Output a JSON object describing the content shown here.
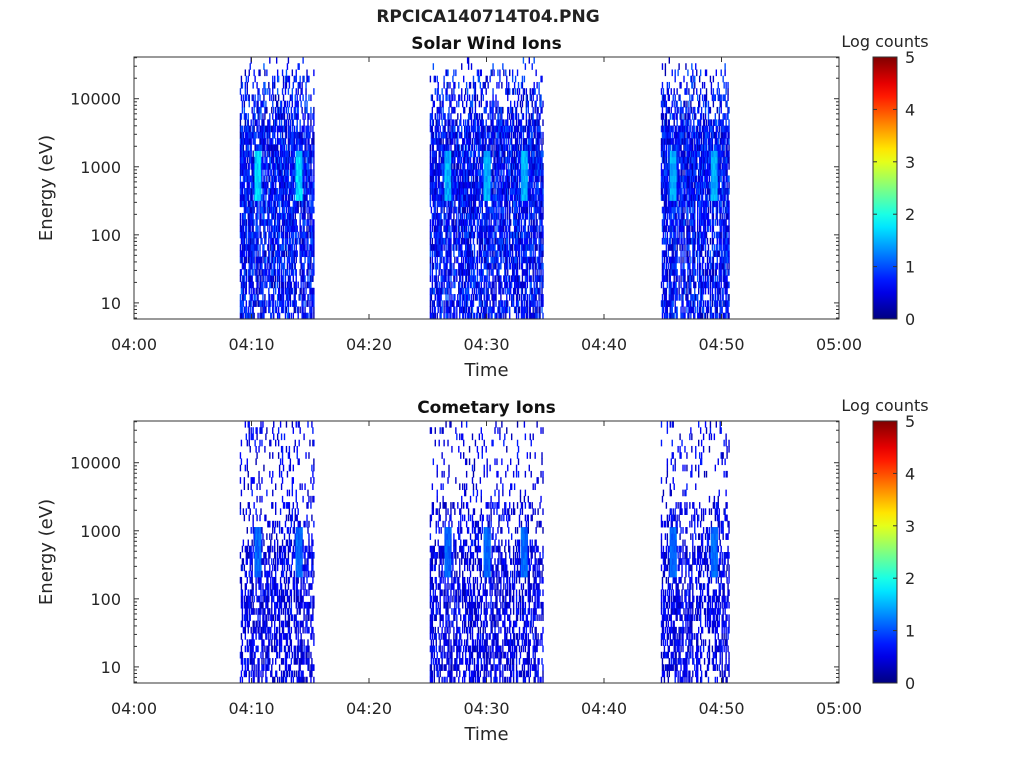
{
  "figure": {
    "title": "RPCICA140714T04.PNG"
  },
  "chart_data": [
    {
      "type": "heatmap",
      "title": "Solar Wind Ions",
      "xlabel": "Time",
      "ylabel": "Energy (eV)",
      "x_ticks": [
        "04:00",
        "04:10",
        "04:20",
        "04:30",
        "04:40",
        "04:50",
        "05:00"
      ],
      "xlim": [
        "04:00",
        "05:00"
      ],
      "y_scale": "log",
      "y_ticks": [
        10,
        100,
        1000,
        10000
      ],
      "y_tick_labels": [
        "10",
        "100",
        "1000",
        "10000"
      ],
      "ylim": [
        5.8,
        41000
      ],
      "colorbar": {
        "label": "Log counts",
        "range": [
          0,
          5
        ],
        "ticks": [
          "0",
          "1",
          "2",
          "3",
          "4",
          "5"
        ],
        "colormap": "jet"
      },
      "bursts": [
        {
          "start": "04:09:00",
          "end": "04:15:20",
          "peaks": [
            "04:10:30",
            "04:14:00"
          ],
          "peak_energy_ev": 800,
          "peak_log_counts": 1.9
        },
        {
          "start": "04:25:10",
          "end": "04:34:50",
          "peaks": [
            "04:26:40",
            "04:30:00",
            "04:33:10"
          ],
          "peak_energy_ev": 800,
          "peak_log_counts": 1.7
        },
        {
          "start": "04:44:50",
          "end": "04:50:40",
          "peaks": [
            "04:45:50",
            "04:49:20"
          ],
          "peak_energy_ev": 800,
          "peak_log_counts": 1.7
        }
      ],
      "intensity": "solar",
      "grid": false
    },
    {
      "type": "heatmap",
      "title": "Cometary Ions",
      "xlabel": "Time",
      "ylabel": "Energy (eV)",
      "x_ticks": [
        "04:00",
        "04:10",
        "04:20",
        "04:30",
        "04:40",
        "04:50",
        "05:00"
      ],
      "xlim": [
        "04:00",
        "05:00"
      ],
      "y_scale": "log",
      "y_ticks": [
        10,
        100,
        1000,
        10000
      ],
      "y_tick_labels": [
        "10",
        "100",
        "1000",
        "10000"
      ],
      "ylim": [
        5.8,
        41000
      ],
      "colorbar": {
        "label": "Log counts",
        "range": [
          0,
          5
        ],
        "ticks": [
          "0",
          "1",
          "2",
          "3",
          "4",
          "5"
        ],
        "colormap": "jet"
      },
      "bursts": [
        {
          "start": "04:09:00",
          "end": "04:15:20",
          "peaks": [
            "04:10:30",
            "04:14:00"
          ],
          "peak_energy_ev": 500,
          "peak_log_counts": 1.3
        },
        {
          "start": "04:25:10",
          "end": "04:34:50",
          "peaks": [
            "04:26:40",
            "04:30:00",
            "04:33:10"
          ],
          "peak_energy_ev": 500,
          "peak_log_counts": 1.3
        },
        {
          "start": "04:44:50",
          "end": "04:50:40",
          "peaks": [
            "04:45:50",
            "04:49:20"
          ],
          "peak_energy_ev": 500,
          "peak_log_counts": 1.3
        }
      ],
      "intensity": "cometary",
      "grid": false
    }
  ]
}
